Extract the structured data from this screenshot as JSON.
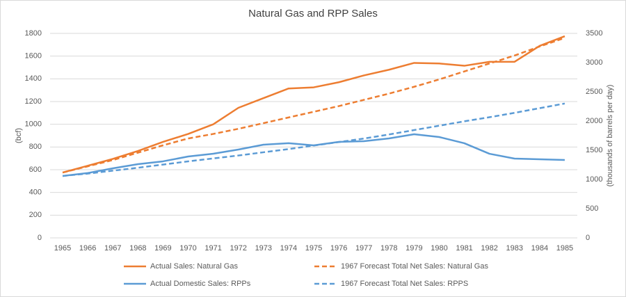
{
  "chart_data": {
    "type": "line",
    "title": "Natural Gas and RPP Sales",
    "y_label": "(bcf)",
    "y2_label": "(thousands of barrels per day)",
    "categories": [
      "1965",
      "1966",
      "1967",
      "1968",
      "1969",
      "1970",
      "1971",
      "1972",
      "1973",
      "1974",
      "1975",
      "1976",
      "1977",
      "1978",
      "1979",
      "1980",
      "1981",
      "1982",
      "1983",
      "1984",
      "1985"
    ],
    "ylim": [
      0,
      1800
    ],
    "yticks": [
      0,
      200,
      400,
      600,
      800,
      1000,
      1200,
      1400,
      1600,
      1800
    ],
    "y2lim": [
      0,
      3500
    ],
    "y2ticks": [
      0,
      500,
      1000,
      1500,
      2000,
      2500,
      3000,
      3500
    ],
    "grid": true,
    "legend_position": "bottom",
    "series": [
      {
        "name": "Actual Sales: Natural Gas",
        "color": "#ed7d31",
        "dashed": false,
        "values": [
          575,
          635,
          695,
          765,
          845,
          915,
          1000,
          1145,
          1230,
          1315,
          1325,
          1370,
          1430,
          1480,
          1540,
          1535,
          1515,
          1550,
          1550,
          1690,
          1775
        ]
      },
      {
        "name": "1967 Forecast Total Net Sales: Natural Gas",
        "color": "#ed7d31",
        "dashed": true,
        "values": [
          575,
          630,
          685,
          750,
          815,
          875,
          915,
          960,
          1010,
          1060,
          1110,
          1160,
          1215,
          1270,
          1330,
          1395,
          1465,
          1535,
          1605,
          1685,
          1760
        ]
      },
      {
        "name": "Actual Domestic Sales: RPPs",
        "color": "#5b9bd5",
        "dashed": false,
        "axis": "y2",
        "values": [
          1060,
          1110,
          1190,
          1262,
          1310,
          1393,
          1440,
          1512,
          1595,
          1620,
          1583,
          1643,
          1655,
          1702,
          1774,
          1726,
          1620,
          1440,
          1357,
          1345,
          1333
        ]
      },
      {
        "name": "1967 Forecast Total Net Sales: RPPS",
        "color": "#5b9bd5",
        "dashed": true,
        "axis": "y2",
        "values": [
          1060,
          1100,
          1150,
          1200,
          1255,
          1310,
          1360,
          1410,
          1465,
          1520,
          1580,
          1640,
          1700,
          1770,
          1845,
          1920,
          1995,
          2065,
          2140,
          2220,
          2300
        ]
      }
    ]
  }
}
